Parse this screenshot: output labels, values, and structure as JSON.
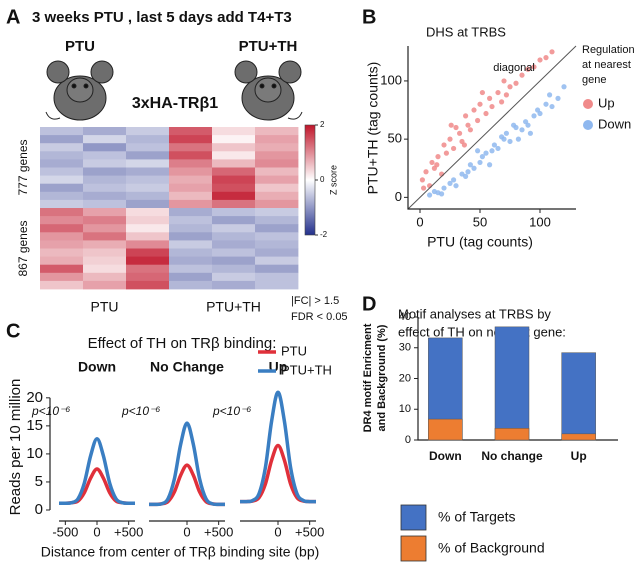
{
  "chart_data": [
    {
      "type": "heatmap",
      "panel": "A",
      "title": "3 weeks PTU , last 5 days add T4+T3",
      "groups": [
        "PTU",
        "PTU+TH"
      ],
      "subtitle": "3xHA-TRβ1",
      "row_groups": [
        "777 genes",
        "867 genes"
      ],
      "column_groups": [
        "PTU",
        "PTU+TH"
      ],
      "colorbar_label": "Z score",
      "colorbar_lim": [
        -2,
        2
      ],
      "colorbar_ticks": [
        2,
        0,
        -2
      ],
      "annotations": [
        "|FC| > 1.5",
        "FDR < 0.05"
      ],
      "values": [
        [
          -0.6,
          -0.8,
          -0.5,
          1.4,
          0.3,
          0.6
        ],
        [
          -0.9,
          -0.4,
          -0.7,
          1.6,
          0.1,
          0.8
        ],
        [
          -0.5,
          -1.0,
          -0.6,
          1.2,
          0.5,
          0.7
        ],
        [
          -0.7,
          -0.6,
          -0.9,
          1.5,
          0.2,
          0.9
        ],
        [
          -0.8,
          -0.5,
          -0.4,
          1.1,
          0.6,
          1.0
        ],
        [
          -0.6,
          -0.9,
          -0.8,
          0.9,
          1.3,
          0.6
        ],
        [
          -0.4,
          -0.7,
          -0.6,
          0.7,
          1.6,
          0.8
        ],
        [
          -0.9,
          -0.6,
          -0.5,
          0.8,
          1.5,
          0.5
        ],
        [
          -0.7,
          -0.8,
          -0.7,
          0.6,
          1.8,
          0.7
        ],
        [
          -0.5,
          -0.6,
          -0.9,
          0.9,
          1.2,
          0.9
        ],
        [
          1.2,
          0.8,
          0.3,
          -0.8,
          -0.6,
          -0.5
        ],
        [
          1.0,
          1.1,
          0.4,
          -0.6,
          -0.9,
          -0.7
        ],
        [
          1.3,
          0.9,
          0.2,
          -0.7,
          -0.5,
          -0.9
        ],
        [
          0.9,
          1.2,
          0.5,
          -0.9,
          -0.7,
          -0.6
        ],
        [
          0.8,
          0.7,
          1.0,
          -0.5,
          -0.8,
          -0.7
        ],
        [
          0.6,
          0.5,
          1.6,
          -0.7,
          -0.6,
          -0.8
        ],
        [
          0.7,
          0.4,
          1.8,
          -0.8,
          -0.9,
          -0.5
        ],
        [
          1.4,
          0.3,
          1.2,
          -0.6,
          -0.7,
          -0.9
        ],
        [
          0.9,
          0.6,
          1.3,
          -0.9,
          -0.5,
          -0.6
        ],
        [
          0.5,
          0.8,
          1.5,
          -0.7,
          -0.8,
          -0.6
        ]
      ]
    },
    {
      "type": "scatter",
      "panel": "B",
      "title": "DHS at TRBS",
      "x_label": "PTU (tag counts)",
      "y_label": "PTU+TH (tag counts)",
      "annotation": "diagonal",
      "legend_title": [
        "Regulation",
        "at nearest",
        "gene"
      ],
      "xlim": [
        -10,
        130
      ],
      "ylim": [
        -10,
        130
      ],
      "xticks": [
        0,
        50,
        100
      ],
      "yticks": [
        0,
        50,
        100
      ],
      "series": [
        {
          "name": "Up",
          "color": "#f08a8a",
          "x": [
            2,
            5,
            8,
            10,
            12,
            15,
            18,
            20,
            22,
            25,
            28,
            30,
            33,
            35,
            38,
            40,
            42,
            45,
            48,
            50,
            55,
            58,
            60,
            65,
            68,
            70,
            75,
            80,
            85,
            90,
            95,
            100,
            105,
            110,
            3,
            14,
            26,
            37,
            52,
            72
          ],
          "values": [
            15,
            22,
            10,
            30,
            25,
            35,
            20,
            45,
            38,
            50,
            42,
            60,
            55,
            48,
            70,
            62,
            58,
            75,
            66,
            80,
            72,
            85,
            78,
            90,
            82,
            100,
            95,
            98,
            105,
            110,
            112,
            118,
            120,
            125,
            8,
            28,
            62,
            45,
            90,
            88
          ]
        },
        {
          "name": "Down",
          "color": "#8fb8ef",
          "x": [
            8,
            12,
            15,
            20,
            25,
            28,
            30,
            35,
            40,
            42,
            45,
            50,
            52,
            55,
            60,
            62,
            65,
            70,
            72,
            75,
            80,
            85,
            88,
            90,
            95,
            100,
            105,
            110,
            115,
            120,
            18,
            38,
            48,
            68,
            82,
            98,
            58,
            78,
            92,
            108
          ],
          "values": [
            2,
            5,
            4,
            8,
            12,
            15,
            10,
            20,
            22,
            28,
            25,
            30,
            35,
            38,
            40,
            45,
            42,
            50,
            55,
            48,
            60,
            58,
            65,
            62,
            70,
            72,
            80,
            78,
            85,
            95,
            3,
            18,
            40,
            52,
            50,
            75,
            28,
            62,
            55,
            88
          ]
        }
      ]
    },
    {
      "type": "line",
      "panel": "C",
      "title": "Effect of TH on TRβ binding:",
      "y_label": "Reads per 10 million",
      "x_label": "Distance from center of TRβ binding site (bp)",
      "xlim": [
        -600,
        600
      ],
      "ylim": [
        -1,
        23
      ],
      "yticks": [
        0,
        5,
        10,
        15,
        20
      ],
      "x": [
        -600,
        -500,
        -400,
        -300,
        -200,
        -100,
        0,
        100,
        200,
        300,
        400,
        500,
        600
      ],
      "series": [
        {
          "name": "PTU",
          "color": "#e0303a"
        },
        {
          "name": "PTU+TH",
          "color": "#3a7ec2"
        }
      ],
      "panels": [
        {
          "title": "Down",
          "annotation": "p<10⁻⁶",
          "xticks": [
            -500,
            0,
            {
              "value": 500,
              "label": "+500"
            }
          ],
          "values": [
            [
              1.2,
              1.2,
              1.3,
              1.6,
              3.1,
              5.7,
              7.3,
              5.7,
              3.1,
              1.6,
              1.3,
              1.2,
              1.2
            ],
            [
              1.2,
              1.2,
              1.3,
              2.0,
              4.8,
              9.7,
              12.7,
              9.7,
              4.8,
              2.0,
              1.3,
              1.2,
              1.2
            ]
          ]
        },
        {
          "title": "No Change",
          "annotation": "p<10⁻⁶",
          "xticks": [
            0,
            {
              "value": 500,
              "label": "+500"
            }
          ],
          "values": [
            [
              1.0,
              1.0,
              1.1,
              1.5,
              3.2,
              6.2,
              8.0,
              6.2,
              3.2,
              1.5,
              1.1,
              1.0,
              1.0
            ],
            [
              1.0,
              1.0,
              1.1,
              2.0,
              5.5,
              11.7,
              15.5,
              11.7,
              5.5,
              2.0,
              1.1,
              1.0,
              1.0
            ]
          ]
        },
        {
          "title": "Up",
          "annotation": "p<10⁻⁶",
          "xticks": [
            0,
            {
              "value": 500,
              "label": "+500"
            }
          ],
          "values": [
            [
              1.5,
              1.5,
              1.6,
              2.2,
              4.6,
              8.9,
              11.5,
              8.9,
              4.6,
              2.2,
              1.6,
              1.5,
              1.5
            ],
            [
              1.5,
              1.5,
              1.7,
              2.9,
              7.5,
              15.9,
              21.0,
              15.9,
              7.5,
              2.9,
              1.7,
              1.5,
              1.5
            ]
          ]
        }
      ]
    },
    {
      "type": "bar",
      "panel": "D",
      "title": [
        "Motif analyses at TRBS by",
        "effect of TH on nearest gene:"
      ],
      "y_label": [
        "DR4 motif Enricment",
        "and Background (%)"
      ],
      "ylim": [
        0,
        40
      ],
      "yticks": [
        0,
        10,
        20,
        30,
        40
      ],
      "categories": [
        "Down",
        "No change",
        "Up"
      ],
      "series": [
        {
          "name": "% of Targets",
          "color": "#4472c4",
          "values": [
            33.2,
            36.8,
            28.4
          ]
        },
        {
          "name": "% of Background",
          "color": "#ed7d31",
          "values": [
            6.8,
            3.8,
            2.0
          ]
        }
      ]
    }
  ]
}
